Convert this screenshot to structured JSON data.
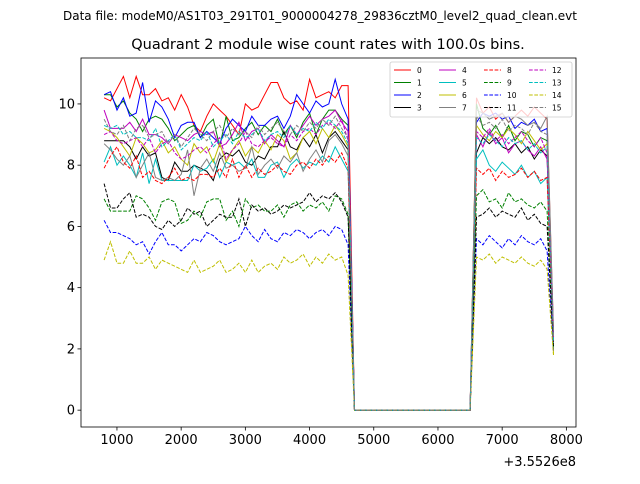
{
  "chart_data": {
    "type": "line",
    "suptitle": "Data file: modeM0/AS1T03_291T01_9000004278_29836cztM0_level2_quad_clean.evt",
    "title": "Quadrant 2 module wise count rates with 100.0s bins.",
    "xlabel": "",
    "ylabel": "",
    "x_offset_label": "+3.5526e8",
    "x_start": 800,
    "x_step": 100,
    "xlim": [
      440,
      8150
    ],
    "ylim": [
      -0.55,
      11.5
    ],
    "xticks": [
      1000,
      2000,
      3000,
      4000,
      5000,
      6000,
      7000,
      8000
    ],
    "yticks": [
      0,
      2,
      4,
      6,
      8,
      10
    ],
    "legend_position": "top-right",
    "series": [
      {
        "name": "0",
        "color": "#ff0000",
        "dash": false,
        "values": [
          10.2,
          10.1,
          10.5,
          10.9,
          10.2,
          10.9,
          10.3,
          10.3,
          10.5,
          10.1,
          10.2,
          9.8,
          10.3,
          9.9,
          9.3,
          9.1,
          9.6,
          10.0,
          9.8,
          9.6,
          9.3,
          9.0,
          10.0,
          9.8,
          9.9,
          10.3,
          10.7,
          10.7,
          10.2,
          10.0,
          10.1,
          9.8,
          10.8,
          10.2,
          10.3,
          10.4,
          10.2,
          10.6,
          10.6,
          0,
          0,
          0,
          0,
          0,
          0,
          0,
          0,
          0,
          0,
          0,
          0,
          0,
          0,
          0,
          0,
          0,
          0,
          0,
          10.2,
          9.7,
          9.9,
          9.5,
          9.7,
          9.4,
          9.6,
          9.8,
          9.6,
          9.9,
          9.7,
          9.5,
          2.5
        ]
      },
      {
        "name": "1",
        "color": "#008000",
        "dash": false,
        "values": [
          10.3,
          10.3,
          9.9,
          10.1,
          9.7,
          9.5,
          9.1,
          9.5,
          9.6,
          9.5,
          9.2,
          8.8,
          9.0,
          9.2,
          9.3,
          8.9,
          9.3,
          9.5,
          8.6,
          9.6,
          8.8,
          8.9,
          9.2,
          9.4,
          9.0,
          9.3,
          9.1,
          9.5,
          9.0,
          9.3,
          8.9,
          9.4,
          9.7,
          9.0,
          9.5,
          9.8,
          9.8,
          9.5,
          9.3,
          0,
          0,
          0,
          0,
          0,
          0,
          0,
          0,
          0,
          0,
          0,
          0,
          0,
          0,
          0,
          0,
          0,
          0,
          0,
          10.0,
          9.2,
          9.0,
          9.3,
          8.9,
          9.3,
          8.8,
          9.1,
          9.0,
          8.6,
          8.9,
          8.8,
          2.4
        ]
      },
      {
        "name": "2",
        "color": "#0000ff",
        "dash": false,
        "values": [
          10.3,
          10.4,
          9.8,
          10.2,
          9.6,
          9.7,
          10.7,
          9.4,
          10.1,
          9.9,
          9.5,
          8.9,
          9.3,
          9.4,
          9.4,
          8.9,
          9.1,
          8.9,
          8.7,
          9.2,
          9.5,
          9.3,
          9.1,
          9.6,
          9.3,
          9.3,
          9.5,
          9.6,
          9.2,
          9.6,
          10.3,
          10.0,
          9.7,
          10.1,
          9.9,
          10.0,
          10.8,
          10.0,
          9.5,
          0,
          0,
          0,
          0,
          0,
          0,
          0,
          0,
          0,
          0,
          0,
          0,
          0,
          0,
          0,
          0,
          0,
          0,
          0,
          9.4,
          9.7,
          9.6,
          9.7,
          9.5,
          9.6,
          9.2,
          9.4,
          9.3,
          9.5,
          9.1,
          9.2,
          2.2
        ]
      },
      {
        "name": "3",
        "color": "#000000",
        "dash": false,
        "values": [
          8.8,
          8.8,
          8.8,
          8.8,
          8.6,
          8.2,
          8.6,
          8.3,
          8.4,
          7.6,
          7.5,
          8.1,
          7.8,
          7.8,
          8.0,
          7.9,
          7.8,
          7.5,
          8.2,
          8.4,
          8.3,
          8.5,
          8.1,
          8.0,
          8.3,
          8.2,
          8.6,
          8.6,
          9.1,
          8.6,
          8.5,
          8.9,
          8.6,
          9.0,
          8.4,
          8.9,
          9.1,
          8.8,
          8.5,
          0,
          0,
          0,
          0,
          0,
          0,
          0,
          0,
          0,
          0,
          0,
          0,
          0,
          0,
          0,
          0,
          0,
          0,
          0,
          8.4,
          8.9,
          8.7,
          8.9,
          8.6,
          8.5,
          8.7,
          8.4,
          8.6,
          8.2,
          8.5,
          8.3,
          2.1
        ]
      },
      {
        "name": "4",
        "color": "#bf00bf",
        "dash": false,
        "values": [
          9.8,
          9.2,
          9.2,
          9.2,
          9.4,
          9.1,
          9.5,
          9.0,
          9.0,
          8.9,
          8.7,
          9.0,
          8.9,
          8.8,
          9.0,
          9.1,
          9.0,
          9.1,
          8.6,
          8.7,
          9.0,
          9.4,
          8.8,
          9.1,
          9.2,
          8.7,
          9.0,
          8.8,
          8.6,
          9.3,
          9.0,
          9.3,
          9.6,
          9.3,
          9.5,
          9.6,
          9.8,
          9.4,
          9.1,
          0,
          0,
          0,
          0,
          0,
          0,
          0,
          0,
          0,
          0,
          0,
          0,
          0,
          0,
          0,
          0,
          0,
          0,
          0,
          9.0,
          8.6,
          9.1,
          8.7,
          8.9,
          8.4,
          8.7,
          8.8,
          8.5,
          8.3,
          8.6,
          8.2,
          2.3
        ]
      },
      {
        "name": "5",
        "color": "#00bfbf",
        "dash": false,
        "values": [
          8.1,
          8.6,
          8.0,
          8.3,
          8.0,
          7.6,
          8.4,
          7.4,
          8.2,
          7.5,
          7.5,
          7.5,
          7.5,
          7.5,
          8.0,
          7.8,
          7.9,
          8.2,
          7.6,
          8.1,
          8.0,
          8.1,
          7.9,
          8.2,
          7.6,
          7.6,
          8.0,
          8.1,
          7.6,
          8.0,
          8.2,
          7.9,
          8.1,
          8.0,
          8.3,
          8.1,
          8.6,
          8.2,
          7.8,
          0,
          0,
          0,
          0,
          0,
          0,
          0,
          0,
          0,
          0,
          0,
          0,
          0,
          0,
          0,
          0,
          0,
          0,
          0,
          8.2,
          8.5,
          8.0,
          7.8,
          8.1,
          7.9,
          7.7,
          8.0,
          7.6,
          7.8,
          7.4,
          7.6,
          2.0
        ]
      },
      {
        "name": "6",
        "color": "#bfbf00",
        "dash": false,
        "values": [
          9.2,
          9.1,
          8.9,
          8.6,
          8.3,
          8.9,
          8.7,
          8.4,
          8.5,
          8.8,
          8.4,
          8.6,
          8.2,
          8.0,
          8.7,
          8.4,
          8.6,
          8.1,
          8.7,
          8.1,
          8.5,
          8.8,
          8.3,
          8.6,
          8.4,
          8.8,
          8.5,
          9.0,
          8.8,
          8.2,
          8.4,
          8.9,
          9.1,
          8.7,
          9.2,
          8.9,
          9.3,
          9.0,
          8.6,
          0,
          0,
          0,
          0,
          0,
          0,
          0,
          0,
          0,
          0,
          0,
          0,
          0,
          0,
          0,
          0,
          0,
          0,
          0,
          9.3,
          9.0,
          8.8,
          9.1,
          8.9,
          9.2,
          9.0,
          8.7,
          9.1,
          8.8,
          8.5,
          8.7,
          1.8
        ]
      },
      {
        "name": "7",
        "color": "#808080",
        "dash": false,
        "values": [
          8.7,
          8.5,
          8.2,
          8.0,
          8.3,
          7.6,
          8.0,
          8.4,
          7.6,
          7.5,
          7.6,
          7.5,
          7.7,
          8.5,
          7.0,
          7.9,
          8.2,
          7.8,
          8.4,
          7.9,
          8.0,
          7.8,
          7.9,
          8.6,
          7.7,
          8.0,
          8.2,
          7.9,
          8.3,
          8.1,
          8.4,
          7.8,
          8.2,
          8.5,
          8.1,
          8.8,
          9.0,
          8.7,
          8.3,
          0,
          0,
          0,
          0,
          0,
          0,
          0,
          0,
          0,
          0,
          0,
          0,
          0,
          0,
          0,
          0,
          0,
          0,
          0,
          9.8,
          9.7,
          9.5,
          9.6,
          9.7,
          9.4,
          9.6,
          9.5,
          9.3,
          9.4,
          9.2,
          9.6,
          2.6
        ]
      },
      {
        "name": "8",
        "color": "#ff0000",
        "dash": true,
        "values": [
          7.9,
          8.3,
          8.6,
          8.1,
          7.9,
          8.3,
          7.6,
          7.8,
          7.5,
          7.4,
          7.6,
          7.9,
          7.5,
          7.6,
          7.5,
          7.7,
          7.7,
          7.6,
          7.9,
          7.6,
          8.2,
          7.6,
          8.0,
          7.6,
          7.9,
          7.7,
          7.8,
          8.0,
          7.8,
          7.7,
          8.0,
          8.1,
          7.9,
          8.2,
          8.0,
          8.3,
          8.1,
          8.4,
          7.9,
          0,
          0,
          0,
          0,
          0,
          0,
          0,
          0,
          0,
          0,
          0,
          0,
          0,
          0,
          0,
          0,
          0,
          0,
          0,
          7.9,
          7.7,
          7.9,
          7.5,
          7.8,
          7.6,
          7.7,
          7.9,
          7.6,
          7.8,
          7.5,
          7.6,
          2.2
        ]
      },
      {
        "name": "9",
        "color": "#008000",
        "dash": true,
        "values": [
          6.9,
          6.5,
          6.5,
          6.5,
          6.5,
          7.0,
          6.9,
          6.6,
          6.2,
          6.8,
          6.9,
          6.8,
          6.1,
          6.2,
          6.5,
          6.3,
          6.8,
          6.9,
          6.9,
          6.2,
          6.5,
          6.0,
          6.9,
          6.6,
          6.7,
          6.5,
          6.5,
          6.7,
          6.3,
          6.7,
          6.8,
          6.5,
          6.7,
          6.6,
          6.8,
          6.5,
          7.0,
          6.9,
          6.4,
          0,
          0,
          0,
          0,
          0,
          0,
          0,
          0,
          0,
          0,
          0,
          0,
          0,
          0,
          0,
          0,
          0,
          0,
          0,
          7.0,
          7.2,
          6.8,
          6.9,
          6.6,
          7.1,
          6.8,
          6.9,
          6.7,
          6.6,
          6.8,
          6.5,
          2.0
        ]
      },
      {
        "name": "10",
        "color": "#0000ff",
        "dash": true,
        "values": [
          6.2,
          5.8,
          5.8,
          5.7,
          5.6,
          5.4,
          5.5,
          5.1,
          5.5,
          5.8,
          5.4,
          5.4,
          5.2,
          5.4,
          5.6,
          5.5,
          5.8,
          5.7,
          5.5,
          5.4,
          5.5,
          5.6,
          6.0,
          5.7,
          5.5,
          5.9,
          5.6,
          5.5,
          5.8,
          5.7,
          5.9,
          5.8,
          5.6,
          5.8,
          5.9,
          5.7,
          6.0,
          5.9,
          5.4,
          0,
          0,
          0,
          0,
          0,
          0,
          0,
          0,
          0,
          0,
          0,
          0,
          0,
          0,
          0,
          0,
          0,
          0,
          0,
          5.6,
          5.4,
          5.7,
          5.5,
          5.3,
          5.6,
          5.4,
          5.7,
          5.5,
          5.4,
          5.6,
          5.2,
          1.9
        ]
      },
      {
        "name": "11",
        "color": "#000000",
        "dash": true,
        "values": [
          7.4,
          6.6,
          6.6,
          6.9,
          7.1,
          6.3,
          6.4,
          6.3,
          6.0,
          5.9,
          6.2,
          6.0,
          6.2,
          6.6,
          6.4,
          6.5,
          6.0,
          6.2,
          6.4,
          6.3,
          6.3,
          6.9,
          6.0,
          6.7,
          6.5,
          6.6,
          6.4,
          6.5,
          6.7,
          6.6,
          6.7,
          6.8,
          7.1,
          6.8,
          7.0,
          6.9,
          7.1,
          6.8,
          6.3,
          0,
          0,
          0,
          0,
          0,
          0,
          0,
          0,
          0,
          0,
          0,
          0,
          0,
          0,
          0,
          0,
          0,
          0,
          0,
          6.3,
          6.4,
          6.6,
          6.3,
          6.5,
          6.4,
          6.3,
          6.6,
          6.2,
          6.4,
          6.1,
          6.0,
          2.1
        ]
      },
      {
        "name": "12",
        "color": "#bf00bf",
        "dash": true,
        "values": [
          9.0,
          9.1,
          8.8,
          8.7,
          8.8,
          8.9,
          8.6,
          8.9,
          8.4,
          8.7,
          8.8,
          8.4,
          8.2,
          8.3,
          8.5,
          8.6,
          8.4,
          8.7,
          8.9,
          8.2,
          8.5,
          8.7,
          9.1,
          8.7,
          8.6,
          8.8,
          8.9,
          8.7,
          8.6,
          9.0,
          8.8,
          9.1,
          9.2,
          9.0,
          9.3,
          9.4,
          9.2,
          9.5,
          8.8,
          0,
          0,
          0,
          0,
          0,
          0,
          0,
          0,
          0,
          0,
          0,
          0,
          0,
          0,
          0,
          0,
          0,
          0,
          0,
          9.1,
          8.9,
          9.2,
          8.8,
          9.0,
          8.7,
          8.9,
          9.1,
          8.8,
          8.6,
          8.9,
          8.4,
          2.3
        ]
      },
      {
        "name": "13",
        "color": "#00bfbf",
        "dash": true,
        "values": [
          9.3,
          9.2,
          9.3,
          9.0,
          9.1,
          8.9,
          8.9,
          8.8,
          9.2,
          8.6,
          8.8,
          9.0,
          8.5,
          8.7,
          8.9,
          8.8,
          9.1,
          8.6,
          8.8,
          9.0,
          8.7,
          9.1,
          8.9,
          9.0,
          9.2,
          8.8,
          9.0,
          9.1,
          8.9,
          9.3,
          9.0,
          9.2,
          9.1,
          9.4,
          9.2,
          9.5,
          9.3,
          9.1,
          8.7,
          0,
          0,
          0,
          0,
          0,
          0,
          0,
          0,
          0,
          0,
          0,
          0,
          0,
          0,
          0,
          0,
          0,
          0,
          0,
          8.9,
          8.7,
          9.0,
          8.8,
          8.6,
          8.9,
          8.7,
          8.8,
          8.5,
          8.7,
          8.4,
          8.6,
          2.2
        ]
      },
      {
        "name": "14",
        "color": "#bfbf00",
        "dash": true,
        "values": [
          4.9,
          5.5,
          4.8,
          4.8,
          5.2,
          4.8,
          4.8,
          5.0,
          4.6,
          4.9,
          4.8,
          4.7,
          4.6,
          4.5,
          4.9,
          4.5,
          4.6,
          4.7,
          4.9,
          4.5,
          4.6,
          4.8,
          4.5,
          4.9,
          4.5,
          4.7,
          4.8,
          4.6,
          5.0,
          4.8,
          4.9,
          5.1,
          4.7,
          5.0,
          4.8,
          5.1,
          4.9,
          5.0,
          4.4,
          0,
          0,
          0,
          0,
          0,
          0,
          0,
          0,
          0,
          0,
          0,
          0,
          0,
          0,
          0,
          0,
          0,
          0,
          0,
          5.0,
          4.9,
          5.1,
          4.8,
          5.0,
          4.9,
          4.8,
          5.0,
          4.8,
          4.7,
          4.9,
          4.6,
          1.8
        ]
      },
      {
        "name": "15",
        "color": "#808080",
        "dash": true,
        "values": [
          9.5,
          9.1,
          9.0,
          9.3,
          8.8,
          9.2,
          9.3,
          8.9,
          9.0,
          9.1,
          8.7,
          9.0,
          8.6,
          8.9,
          9.2,
          9.0,
          8.8,
          9.1,
          9.3,
          8.9,
          9.2,
          9.0,
          9.1,
          8.9,
          9.3,
          9.0,
          9.2,
          9.4,
          9.1,
          9.0,
          9.3,
          9.1,
          9.4,
          9.2,
          9.5,
          9.3,
          9.6,
          9.2,
          8.9,
          0,
          0,
          0,
          0,
          0,
          0,
          0,
          0,
          0,
          0,
          0,
          0,
          0,
          0,
          0,
          0,
          0,
          0,
          0,
          9.6,
          9.3,
          9.4,
          9.2,
          9.5,
          9.1,
          9.3,
          9.2,
          9.0,
          9.4,
          9.1,
          9.0,
          2.4
        ]
      }
    ]
  }
}
